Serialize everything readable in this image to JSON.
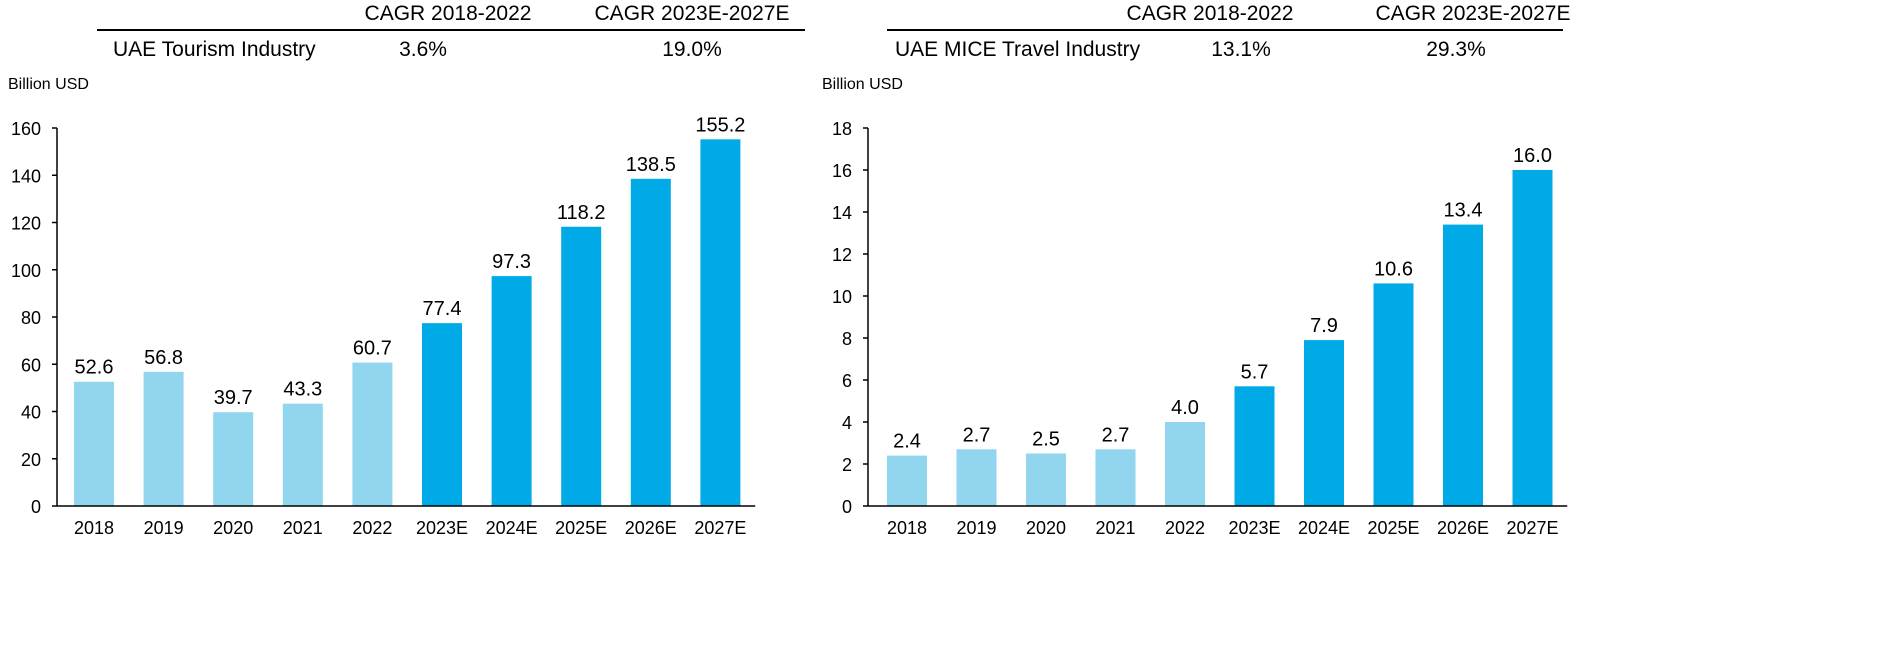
{
  "chart_data": [
    {
      "type": "bar",
      "table": {
        "headers": [
          "CAGR 2018-2022",
          "CAGR 2023E-2027E"
        ],
        "row_label": "UAE Tourism Industry",
        "row_values": [
          "3.6%",
          "19.0%"
        ]
      },
      "ylabel": "Billion USD",
      "ylim": [
        0,
        160
      ],
      "yticks": [
        0,
        20,
        40,
        60,
        80,
        100,
        120,
        140,
        160
      ],
      "categories": [
        "2018",
        "2019",
        "2020",
        "2021",
        "2022",
        "2023E",
        "2024E",
        "2025E",
        "2026E",
        "2027E"
      ],
      "values": [
        52.6,
        56.8,
        39.7,
        43.3,
        60.7,
        77.4,
        97.3,
        118.2,
        138.5,
        155.2
      ],
      "value_labels": [
        "52.6",
        "56.8",
        "39.7",
        "43.3",
        "60.7",
        "77.4",
        "97.3",
        "118.2",
        "138.5",
        "155.2"
      ]
    },
    {
      "type": "bar",
      "table": {
        "headers": [
          "CAGR 2018-2022",
          "CAGR 2023E-2027E"
        ],
        "row_label": "UAE MICE Travel Industry",
        "row_values": [
          "13.1%",
          "29.3%"
        ]
      },
      "ylabel": "Billion USD",
      "ylim": [
        0,
        18
      ],
      "yticks": [
        0,
        2,
        4,
        6,
        8,
        10,
        12,
        14,
        16,
        18
      ],
      "categories": [
        "2018",
        "2019",
        "2020",
        "2021",
        "2022",
        "2023E",
        "2024E",
        "2025E",
        "2026E",
        "2027E"
      ],
      "values": [
        2.4,
        2.7,
        2.5,
        2.7,
        4.0,
        5.7,
        7.9,
        10.6,
        13.4,
        16.0
      ],
      "value_labels": [
        "2.4",
        "2.7",
        "2.5",
        "2.7",
        "4.0",
        "5.7",
        "7.9",
        "10.6",
        "13.4",
        "16.0"
      ]
    }
  ],
  "colors": {
    "historical": "#92d5ee",
    "forecast": "#00aae6",
    "axis": "#000000"
  }
}
